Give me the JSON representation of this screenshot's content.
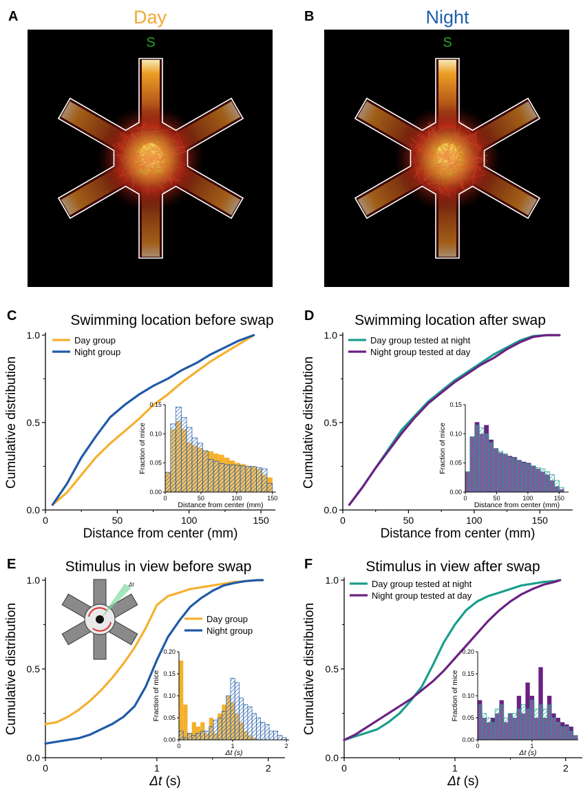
{
  "panels": {
    "A": {
      "letter": "A",
      "title": "Day",
      "title_color": "#f0a830",
      "start_label": "S"
    },
    "B": {
      "letter": "B",
      "title": "Night",
      "title_color": "#1f5fad",
      "start_label": "S"
    }
  },
  "colors": {
    "day": "#f5b02e",
    "night": "#1f5aa8",
    "day_swap": "#1a9e8c",
    "night_swap": "#6b2183",
    "start": "#2aa12a",
    "arena": "#ffffff"
  },
  "chart_data": [
    {
      "id": "C",
      "letter": "C",
      "type": "line",
      "title": "Swimming location before swap",
      "xlabel": "Distance from center (mm)",
      "ylabel": "Cumulative distribution",
      "xlim": [
        0,
        160
      ],
      "ylim": [
        0,
        1
      ],
      "xticks": [
        0,
        50,
        100,
        150
      ],
      "xtick_labels": [
        "0",
        "50",
        "100",
        "150"
      ],
      "yticks": [
        0,
        0.5,
        1
      ],
      "ytick_labels": [
        "0.0",
        "0.5",
        "1.0"
      ],
      "legend_position": "top-left",
      "series": [
        {
          "name": "Day group",
          "color": "#f5b02e",
          "x": [
            5,
            15,
            25,
            35,
            45,
            55,
            65,
            75,
            85,
            95,
            105,
            115,
            125,
            135,
            145
          ],
          "y": [
            0.03,
            0.1,
            0.2,
            0.3,
            0.38,
            0.45,
            0.52,
            0.6,
            0.66,
            0.73,
            0.79,
            0.85,
            0.9,
            0.95,
            1.0
          ]
        },
        {
          "name": "Night group",
          "color": "#1f5aa8",
          "x": [
            5,
            15,
            25,
            35,
            45,
            55,
            65,
            75,
            85,
            95,
            105,
            115,
            125,
            135,
            145
          ],
          "y": [
            0.03,
            0.15,
            0.3,
            0.42,
            0.53,
            0.6,
            0.66,
            0.71,
            0.75,
            0.8,
            0.84,
            0.89,
            0.93,
            0.97,
            1.0
          ]
        }
      ],
      "inset": {
        "type": "histogram",
        "xlabel": "Distance from center (mm)",
        "ylabel": "Fraction of mice",
        "xlim": [
          0,
          155
        ],
        "ylim": [
          0,
          0.15
        ],
        "xticks": [
          0,
          50,
          100,
          150
        ],
        "xtick_labels": [
          "0",
          "50",
          "100",
          "150"
        ],
        "yticks": [
          0,
          0.05,
          0.1,
          0.15
        ],
        "ytick_labels": [
          "0.00",
          "0.05",
          "0.10",
          "0.15"
        ],
        "bin_width": 7.5,
        "bin_start": 0,
        "series": [
          {
            "color": "#f5b02e",
            "style": "solid",
            "values": [
              0.034,
              0.108,
              0.122,
              0.108,
              0.085,
              0.08,
              0.076,
              0.071,
              0.07,
              0.066,
              0.064,
              0.059,
              0.054,
              0.05,
              0.048,
              0.045,
              0.044,
              0.04,
              0.03,
              0.025
            ]
          },
          {
            "color": "#1f5aa8",
            "style": "hatched",
            "values": [
              0.034,
              0.117,
              0.146,
              0.128,
              0.111,
              0.093,
              0.084,
              0.071,
              0.056,
              0.053,
              0.049,
              0.047,
              0.047,
              0.046,
              0.045,
              0.044,
              0.044,
              0.042,
              0.04,
              0.015
            ]
          }
        ]
      }
    },
    {
      "id": "D",
      "letter": "D",
      "type": "line",
      "title": "Swimming location after swap",
      "xlabel": "Distance from center (mm)",
      "ylabel": "Cumulative distribution",
      "xlim": [
        0,
        175
      ],
      "ylim": [
        0,
        1
      ],
      "xticks": [
        0,
        50,
        100,
        150
      ],
      "xtick_labels": [
        "0",
        "50",
        "100",
        "150"
      ],
      "yticks": [
        0,
        0.5,
        1
      ],
      "ytick_labels": [
        "0.0",
        "0.5",
        "1.0"
      ],
      "legend_position": "top-left",
      "series": [
        {
          "name": "Day group tested at night",
          "color": "#1a9e8c",
          "x": [
            5,
            15,
            25,
            35,
            45,
            55,
            65,
            75,
            85,
            95,
            105,
            115,
            125,
            135,
            145,
            155,
            165
          ],
          "y": [
            0.03,
            0.13,
            0.24,
            0.35,
            0.46,
            0.54,
            0.62,
            0.68,
            0.74,
            0.79,
            0.84,
            0.89,
            0.93,
            0.97,
            0.995,
            1.0,
            1.0
          ]
        },
        {
          "name": "Night group tested at day",
          "color": "#6b2183",
          "x": [
            5,
            15,
            25,
            35,
            45,
            55,
            65,
            75,
            85,
            95,
            105,
            115,
            125,
            135,
            145,
            155,
            165
          ],
          "y": [
            0.03,
            0.13,
            0.24,
            0.34,
            0.44,
            0.53,
            0.61,
            0.67,
            0.73,
            0.78,
            0.83,
            0.87,
            0.92,
            0.96,
            0.99,
            1.0,
            1.0
          ]
        }
      ],
      "inset": {
        "type": "histogram",
        "xlabel": "Distance from center (mm)",
        "ylabel": "Fraction of mice",
        "xlim": [
          0,
          165
        ],
        "ylim": [
          0,
          0.15
        ],
        "xticks": [
          0,
          50,
          100,
          150
        ],
        "xtick_labels": [
          "0",
          "50",
          "100",
          "150"
        ],
        "yticks": [
          0,
          0.05,
          0.1,
          0.15
        ],
        "ytick_labels": [
          "0.00",
          "0.05",
          "0.10",
          "0.15"
        ],
        "bin_width": 7.5,
        "bin_start": 0,
        "series": [
          {
            "color": "#6b2183",
            "style": "solid",
            "values": [
              0.035,
              0.095,
              0.12,
              0.1,
              0.115,
              0.09,
              0.075,
              0.068,
              0.065,
              0.062,
              0.06,
              0.055,
              0.052,
              0.05,
              0.045,
              0.04,
              0.035,
              0.03,
              0.02,
              0.01,
              0.005
            ]
          },
          {
            "color": "#1a9e8c",
            "style": "hatched",
            "values": [
              0.035,
              0.095,
              0.115,
              0.11,
              0.1,
              0.085,
              0.075,
              0.07,
              0.066,
              0.06,
              0.058,
              0.054,
              0.05,
              0.048,
              0.045,
              0.042,
              0.04,
              0.035,
              0.03,
              0.02,
              0.008
            ]
          }
        ]
      }
    },
    {
      "id": "E",
      "letter": "E",
      "type": "line",
      "title": "Stimulus in view before swap",
      "xlabel_italic": "Δt",
      "xlabel_unit": " (s)",
      "ylabel": "Cumulative distribution",
      "xlim": [
        0,
        2.15
      ],
      "ylim": [
        0,
        1
      ],
      "xticks": [
        0,
        1,
        2
      ],
      "xtick_labels": [
        "0",
        "1",
        "2"
      ],
      "yticks": [
        0,
        0.5,
        1
      ],
      "ytick_labels": [
        "0.0",
        "0.5",
        "1.0"
      ],
      "legend_position": "right",
      "icon_label": "Δt",
      "series": [
        {
          "name": "Day group",
          "color": "#f5b02e",
          "x": [
            0,
            0.1,
            0.2,
            0.3,
            0.4,
            0.5,
            0.6,
            0.7,
            0.8,
            0.9,
            1.0,
            1.1,
            1.2,
            1.3,
            1.4,
            1.5,
            1.6,
            1.7,
            1.8,
            1.9,
            1.95
          ],
          "y": [
            0.19,
            0.2,
            0.23,
            0.27,
            0.32,
            0.38,
            0.45,
            0.53,
            0.62,
            0.73,
            0.86,
            0.91,
            0.93,
            0.95,
            0.96,
            0.97,
            0.98,
            0.99,
            0.995,
            1.0,
            1.0
          ]
        },
        {
          "name": "Night group",
          "color": "#1f5aa8",
          "x": [
            0,
            0.1,
            0.2,
            0.3,
            0.4,
            0.5,
            0.6,
            0.7,
            0.8,
            0.9,
            1.0,
            1.1,
            1.2,
            1.3,
            1.4,
            1.5,
            1.6,
            1.7,
            1.8,
            1.9,
            1.95
          ],
          "y": [
            0.08,
            0.09,
            0.1,
            0.11,
            0.13,
            0.16,
            0.19,
            0.23,
            0.29,
            0.4,
            0.55,
            0.68,
            0.77,
            0.85,
            0.9,
            0.94,
            0.97,
            0.985,
            0.995,
            1.0,
            1.0
          ]
        }
      ],
      "inset": {
        "type": "histogram",
        "xlabel_italic": "Δt",
        "xlabel_unit": " (s)",
        "ylabel": "Fraction of mice",
        "xlim": [
          0,
          2.05
        ],
        "ylim": [
          0,
          0.2
        ],
        "xticks": [
          0,
          1,
          2
        ],
        "xtick_labels": [
          "0",
          "1",
          "2"
        ],
        "yticks": [
          0,
          0.05,
          0.1,
          0.15,
          0.2
        ],
        "ytick_labels": [
          "0.00",
          "0.05",
          "0.10",
          "0.15",
          "0.20"
        ],
        "bin_width": 0.08,
        "bin_start": 0,
        "series": [
          {
            "color": "#f5b02e",
            "style": "solid",
            "values": [
              0.18,
              0.08,
              0.015,
              0.04,
              0.03,
              0.04,
              0.015,
              0.05,
              0.015,
              0.06,
              0.08,
              0.1,
              0.085,
              0.06,
              0.04,
              0.02,
              0.01,
              0.005,
              0,
              0,
              0,
              0,
              0,
              0,
              0
            ]
          },
          {
            "color": "#1f5aa8",
            "style": "hatched",
            "values": [
              0.02,
              0.005,
              0.015,
              0.01,
              0.015,
              0.02,
              0.02,
              0.03,
              0.045,
              0.05,
              0.065,
              0.1,
              0.14,
              0.13,
              0.095,
              0.08,
              0.075,
              0.06,
              0.05,
              0.04,
              0.035,
              0.02,
              0.02,
              0.01,
              0.005
            ]
          }
        ]
      }
    },
    {
      "id": "F",
      "letter": "F",
      "type": "line",
      "title": "Stimulus in view after swap",
      "xlabel_italic": "Δt",
      "xlabel_unit": " (s)",
      "ylabel": "Cumulative distribution",
      "xlim": [
        0,
        2.15
      ],
      "ylim": [
        0,
        1
      ],
      "xticks": [
        0,
        1,
        2
      ],
      "xtick_labels": [
        "0",
        "1",
        "2"
      ],
      "yticks": [
        0,
        0.5,
        1
      ],
      "ytick_labels": [
        "0.0",
        "0.5",
        "1.0"
      ],
      "legend_position": "top-left",
      "series": [
        {
          "name": "Day group tested at night",
          "color": "#1a9e8c",
          "x": [
            0,
            0.1,
            0.2,
            0.3,
            0.4,
            0.5,
            0.6,
            0.7,
            0.8,
            0.9,
            1.0,
            1.1,
            1.2,
            1.3,
            1.4,
            1.5,
            1.6,
            1.7,
            1.8,
            1.9,
            1.95
          ],
          "y": [
            0.1,
            0.12,
            0.14,
            0.16,
            0.2,
            0.25,
            0.32,
            0.4,
            0.52,
            0.65,
            0.75,
            0.83,
            0.88,
            0.91,
            0.93,
            0.95,
            0.97,
            0.98,
            0.99,
            0.995,
            1.0
          ]
        },
        {
          "name": "Night group tested at day",
          "color": "#6b2183",
          "x": [
            0,
            0.1,
            0.2,
            0.3,
            0.4,
            0.5,
            0.6,
            0.7,
            0.8,
            0.9,
            1.0,
            1.1,
            1.2,
            1.3,
            1.4,
            1.5,
            1.6,
            1.7,
            1.8,
            1.9,
            1.95
          ],
          "y": [
            0.1,
            0.13,
            0.17,
            0.21,
            0.25,
            0.29,
            0.33,
            0.38,
            0.43,
            0.49,
            0.56,
            0.63,
            0.7,
            0.77,
            0.83,
            0.88,
            0.92,
            0.95,
            0.975,
            0.99,
            1.0
          ]
        }
      ],
      "inset": {
        "type": "histogram",
        "xlabel_italic": "Δt",
        "xlabel_unit": " (s)",
        "ylabel": "Fraction of mice",
        "xlim": [
          0,
          1.85
        ],
        "ylim": [
          0,
          0.2
        ],
        "xticks": [
          0,
          1
        ],
        "xtick_labels": [
          "0",
          "1"
        ],
        "yticks": [
          0,
          0.05,
          0.1,
          0.15,
          0.2
        ],
        "ytick_labels": [
          "0.00",
          "0.05",
          "0.10",
          "0.15",
          "0.20"
        ],
        "bin_width": 0.08,
        "bin_start": 0,
        "series": [
          {
            "color": "#6b2183",
            "style": "solid",
            "values": [
              0.09,
              0.05,
              0.04,
              0.05,
              0.06,
              0.09,
              0.04,
              0.06,
              0.05,
              0.1,
              0.06,
              0.13,
              0.1,
              0.05,
              0.165,
              0.05,
              0.1,
              0.06,
              0.05,
              0.04,
              0.035,
              0.03,
              0.01
            ]
          },
          {
            "color": "#1a9e8c",
            "style": "hatched",
            "values": [
              0.08,
              0.06,
              0.05,
              0.04,
              0.07,
              0.08,
              0.05,
              0.06,
              0.06,
              0.07,
              0.08,
              0.07,
              0.09,
              0.07,
              0.08,
              0.07,
              0.08,
              0.05,
              0.04,
              0.03,
              0.03,
              0.02,
              0.01
            ]
          }
        ]
      }
    }
  ]
}
